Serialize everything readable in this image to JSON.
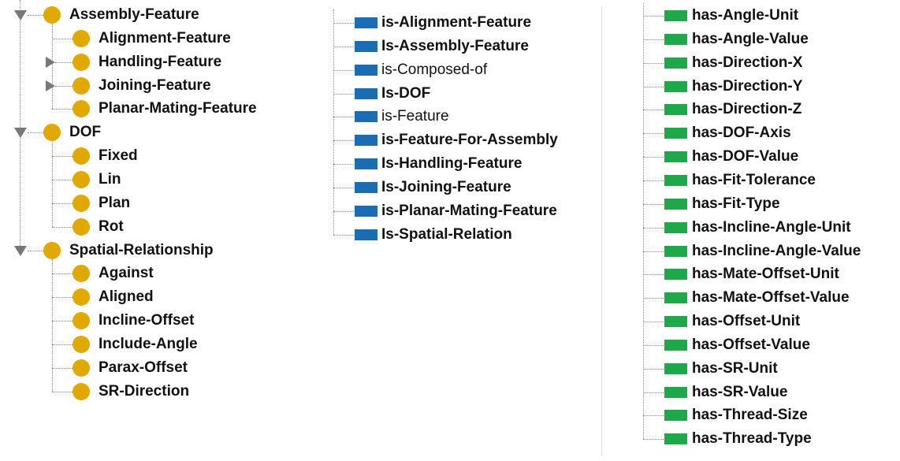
{
  "class_tree": [
    {
      "label": "Assembly-Feature",
      "children": [
        {
          "label": "Alignment-Feature",
          "collapsed": false
        },
        {
          "label": "Handling-Feature",
          "collapsed": true
        },
        {
          "label": "Joining-Feature",
          "collapsed": true
        },
        {
          "label": "Planar-Mating-Feature",
          "collapsed": false
        }
      ]
    },
    {
      "label": "DOF",
      "children": [
        {
          "label": "Fixed",
          "collapsed": false
        },
        {
          "label": "Lin",
          "collapsed": false
        },
        {
          "label": "Plan",
          "collapsed": false
        },
        {
          "label": "Rot",
          "collapsed": false
        }
      ]
    },
    {
      "label": "Spatial-Relationship",
      "children": [
        {
          "label": "Against",
          "collapsed": false
        },
        {
          "label": "Aligned",
          "collapsed": false
        },
        {
          "label": "Incline-Offset",
          "collapsed": false
        },
        {
          "label": "Include-Angle",
          "collapsed": false
        },
        {
          "label": "Parax-Offset",
          "collapsed": false
        },
        {
          "label": "SR-Direction",
          "collapsed": false
        }
      ]
    }
  ],
  "object_properties": {
    "color": "#1a6db3",
    "items": [
      {
        "label": "is-Alignment-Feature",
        "bold": true
      },
      {
        "label": "Is-Assembly-Feature",
        "bold": true
      },
      {
        "label": "is-Composed-of",
        "bold": false
      },
      {
        "label": "Is-DOF",
        "bold": true
      },
      {
        "label": "is-Feature",
        "bold": false
      },
      {
        "label": "is-Feature-For-Assembly",
        "bold": true
      },
      {
        "label": "Is-Handling-Feature",
        "bold": true
      },
      {
        "label": "Is-Joining-Feature",
        "bold": true
      },
      {
        "label": "is-Planar-Mating-Feature",
        "bold": true
      },
      {
        "label": "Is-Spatial-Relation",
        "bold": true
      }
    ]
  },
  "data_properties": {
    "color": "#1ea84a",
    "items": [
      "has-Angle-Unit",
      "has-Angle-Value",
      "has-Direction-X",
      "has-Direction-Y",
      "has-Direction-Z",
      "has-DOF-Axis",
      "has-DOF-Value",
      "has-Fit-Tolerance",
      "has-Fit-Type",
      "has-Incline-Angle-Unit",
      "has-Incline-Angle-Value",
      "has-Mate-Offset-Unit",
      "has-Mate-Offset-Value",
      "has-Offset-Unit",
      "has-Offset-Value",
      "has-SR-Unit",
      "has-SR-Value",
      "has-Thread-Size",
      "has-Thread-Type"
    ]
  }
}
